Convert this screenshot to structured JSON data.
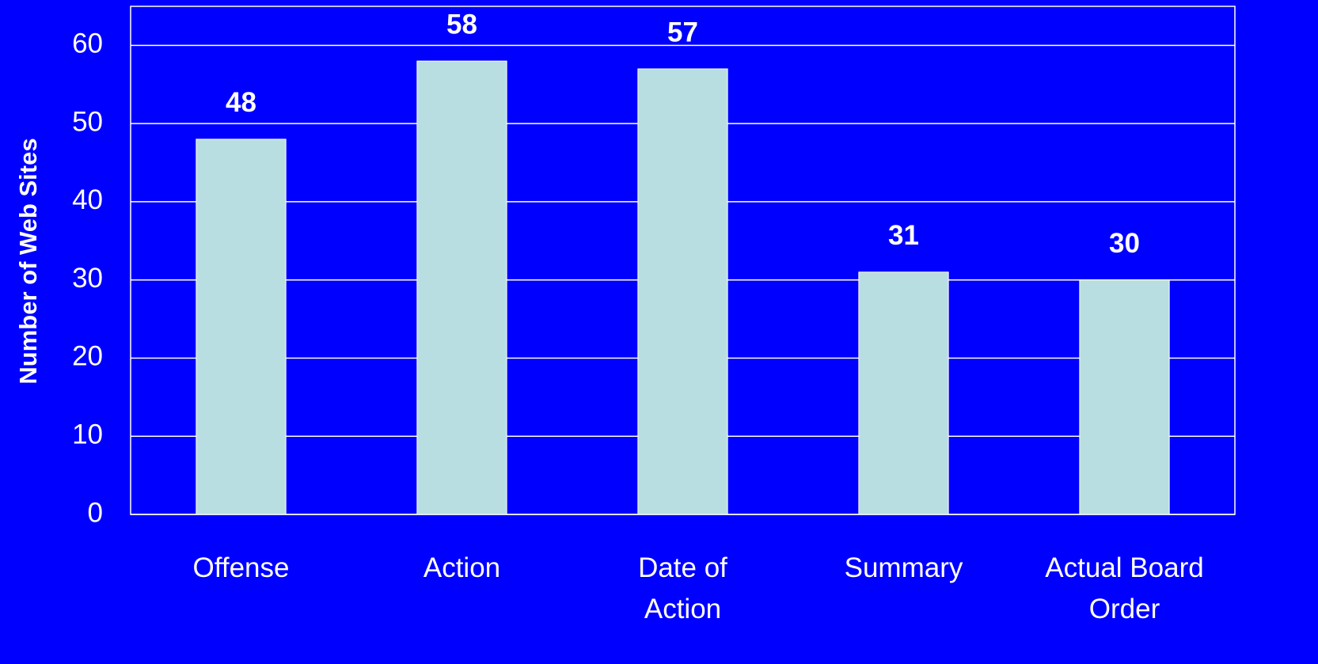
{
  "chart_data": {
    "type": "bar",
    "y_label": "Number of Web Sites",
    "categories": [
      "Offense",
      "Action",
      "Date of\nAction",
      "Summary",
      "Actual Board\nOrder"
    ],
    "values": [
      48,
      58,
      57,
      31,
      30
    ],
    "color": "#b8dee2",
    "background": "#0000ff",
    "ylim": [
      0,
      65
    ],
    "yticks": [
      0,
      10,
      20,
      30,
      40,
      50,
      60
    ],
    "grid": true
  }
}
